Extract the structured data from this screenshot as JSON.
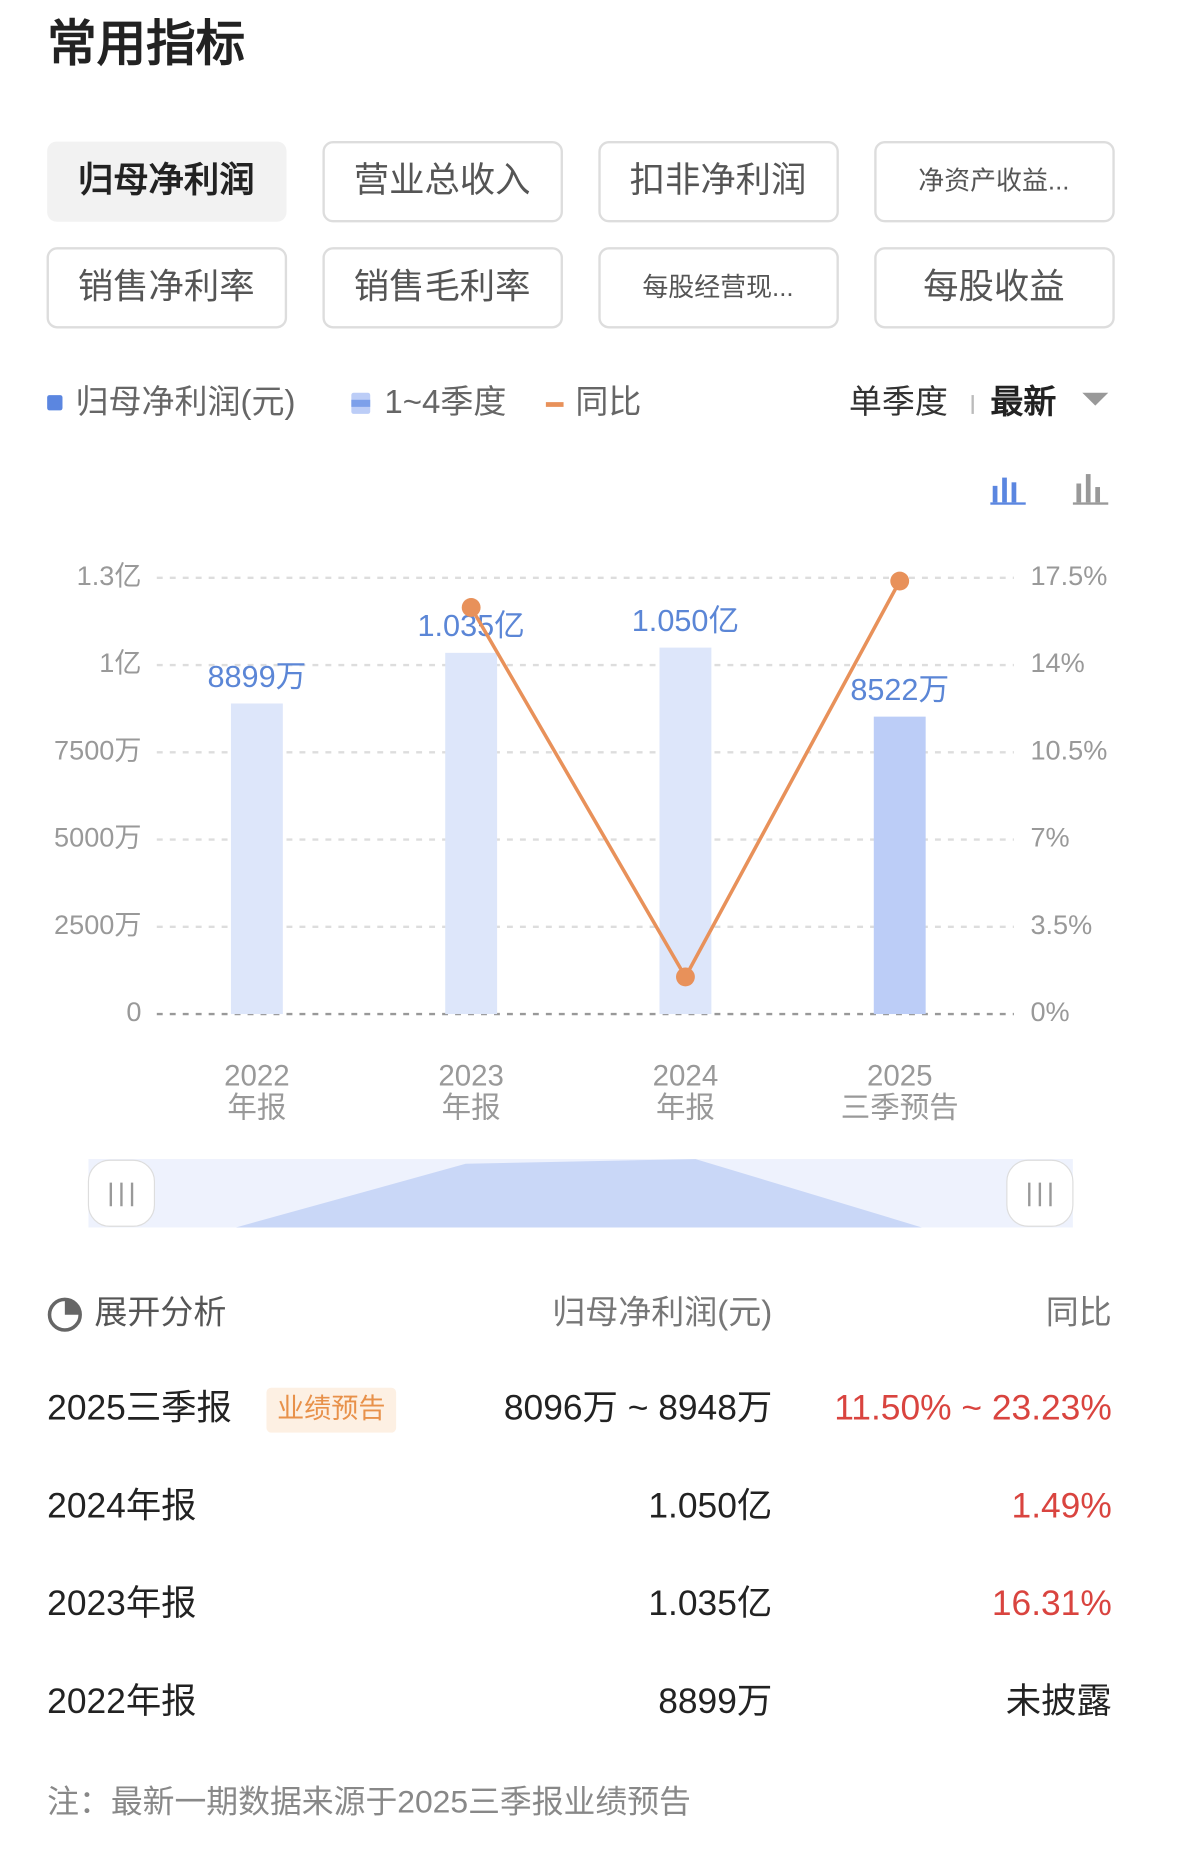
{
  "header": {
    "title": "常用指标"
  },
  "tabs": [
    "归母净利润",
    "营业总收入",
    "扣非净利润",
    "净资产收益...",
    "销售净利率",
    "销售毛利率",
    "每股经营现...",
    "每股收益"
  ],
  "controls": {
    "period": "单季度",
    "latest": "最新"
  },
  "chart_data": {
    "type": "bar",
    "categories": [
      [
        "2022",
        "年报"
      ],
      [
        "2023",
        "年报"
      ],
      [
        "2024",
        "年报"
      ],
      [
        "2025",
        "三季预告"
      ]
    ],
    "series": [
      {
        "name": "归母净利润(元)",
        "color": "#5b86e0",
        "colors": [
          "#dde6fa",
          "#dde6fa",
          "#dde6fa",
          "#bccdf7"
        ],
        "values": [
          88990000,
          103500000,
          105000000,
          85220000
        ],
        "value_labels": [
          "8899万",
          "1.035亿",
          "1.050亿",
          "8522万"
        ]
      },
      {
        "name": "同比",
        "type": "line",
        "axis": "y2",
        "color": "#e8915a",
        "values": [
          null,
          16.31,
          1.49,
          17.37
        ]
      }
    ],
    "legend_extra": "1~4季度",
    "ylim": [
      0,
      125000000
    ],
    "yticks": [
      0,
      {
        "value": 25000000,
        "label": "2500万"
      },
      {
        "value": 50000000,
        "label": "5000万"
      },
      {
        "value": 75000000,
        "label": "7500万"
      },
      {
        "value": 100000000,
        "label": "1亿"
      },
      {
        "value": 125000000,
        "label": "1.3亿"
      }
    ],
    "y2lim": [
      0,
      17.5
    ],
    "y2ticks": [
      {
        "value": 0,
        "label": "0%"
      },
      {
        "value": 3.5,
        "label": "3.5%"
      },
      {
        "value": 7,
        "label": "7%"
      },
      {
        "value": 10.5,
        "label": "10.5%"
      },
      {
        "value": 14,
        "label": "14%"
      },
      {
        "value": 17.5,
        "label": "17.5%"
      }
    ],
    "grid": true
  },
  "table": {
    "header": [
      "展开分析",
      "归母净利润(元)",
      "同比"
    ],
    "rows": [
      [
        "2025三季报",
        "业绩预告",
        "8096万 ~ 8948万",
        "11.50% ~ 23.23%"
      ],
      [
        "2024年报",
        null,
        "1.050亿",
        "1.49%"
      ],
      [
        "2023年报",
        null,
        "1.035亿",
        "16.31%"
      ],
      [
        "2022年报",
        null,
        "8899万",
        "未披露"
      ]
    ]
  },
  "note": "注：最新一期数据来源于2025三季报业绩预告"
}
